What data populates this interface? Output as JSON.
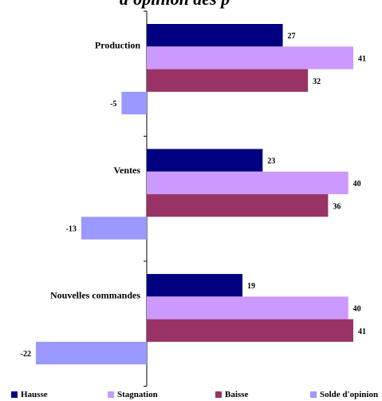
{
  "chart_data": {
    "type": "bar",
    "orientation": "horizontal",
    "title_fragment": "d'opinion des p",
    "categories": [
      "Production",
      "Ventes",
      "Nouvelles commandes"
    ],
    "series": [
      {
        "name": "Hausse",
        "color": "#000080",
        "values": [
          27,
          23,
          19
        ]
      },
      {
        "name": "Stagnation",
        "color": "#CC99FF",
        "values": [
          41,
          40,
          40
        ]
      },
      {
        "name": "Baisse",
        "color": "#993366",
        "values": [
          32,
          36,
          41
        ]
      },
      {
        "name": "Solde d'opinion",
        "color": "#9999FF",
        "values": [
          -5,
          -13,
          -22
        ]
      }
    ],
    "xlim": [
      -22,
      41
    ],
    "grid": false,
    "legend_position": "bottom"
  }
}
